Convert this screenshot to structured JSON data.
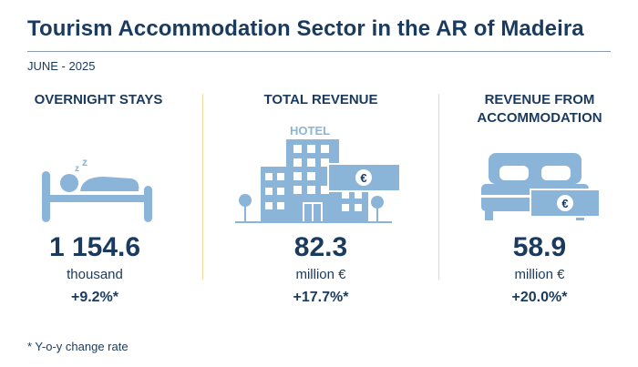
{
  "title": "Tourism Accommodation Sector in the AR of Madeira",
  "period": "JUNE - 2025",
  "colors": {
    "navy": "#1a3a5e",
    "icon_blue": "#8bb4d9",
    "divider": "#f3d9a0"
  },
  "indicators": [
    {
      "heading": "OVERNIGHT STAYS",
      "icon": "sleeping-person-bed-icon",
      "value": "1 154.6",
      "unit": "thousand",
      "change": "+9.2%*"
    },
    {
      "heading": "TOTAL REVENUE",
      "icon": "hotel-building-euro-icon",
      "icon_label": "HOTEL",
      "value": "82.3",
      "unit": "million €",
      "change": "+17.7%*"
    },
    {
      "heading": "REVENUE FROM ACCOMMODATION",
      "icon": "double-bed-euro-icon",
      "value": "58.9",
      "unit": "million €",
      "change": "+20.0%*"
    }
  ],
  "footnote": "* Y-o-y change rate"
}
